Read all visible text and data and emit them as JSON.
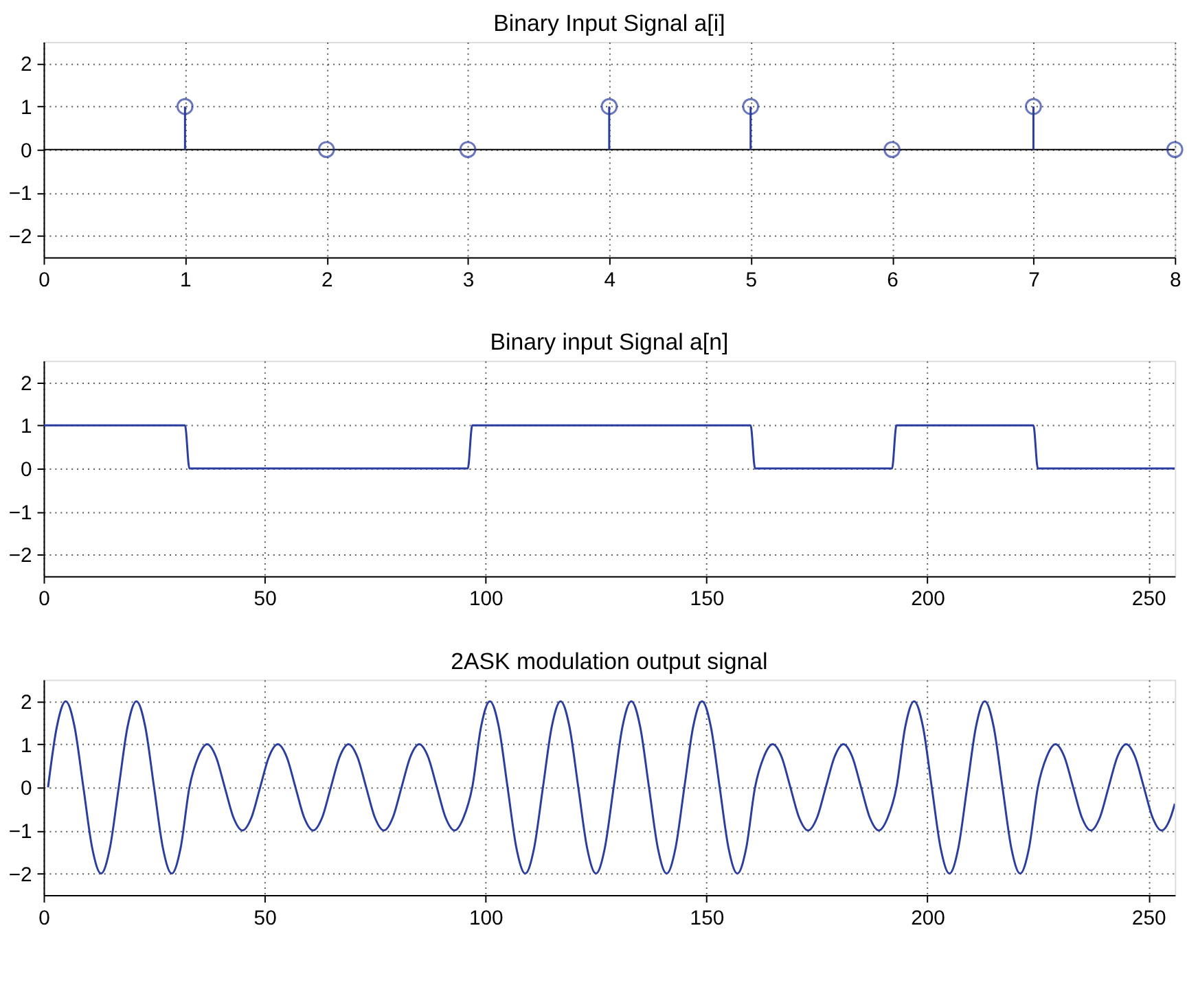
{
  "chart_data": [
    {
      "type": "lollipop",
      "title": "Binary Input Signal a[i]",
      "x": [
        1,
        2,
        3,
        4,
        5,
        6,
        7,
        8
      ],
      "series": [
        {
          "color": "#2b3ea0",
          "values": [
            1,
            0,
            0,
            1,
            1,
            0,
            1,
            0
          ]
        }
      ],
      "marker": "circle",
      "xlim": [
        0,
        8
      ],
      "xticks": [
        0,
        1,
        2,
        3,
        4,
        5,
        6,
        7,
        8
      ],
      "ylim": [
        -2.5,
        2.5
      ],
      "yticks": [
        -2,
        -1,
        0,
        1,
        2
      ],
      "grid": true
    },
    {
      "type": "line",
      "title": "Binary input Signal a[n]",
      "x": [
        0,
        32,
        33,
        96,
        97,
        160,
        161,
        192,
        193,
        224,
        225,
        256
      ],
      "series": [
        {
          "color": "#2b3ea0",
          "values": [
            1,
            1,
            0,
            0,
            1,
            1,
            0,
            0,
            1,
            1,
            0,
            0
          ]
        }
      ],
      "xlim": [
        0,
        256
      ],
      "xticks": [
        0,
        50,
        100,
        150,
        200,
        250
      ],
      "ylim": [
        -2.5,
        2.5
      ],
      "yticks": [
        -2,
        -1,
        0,
        1,
        2
      ],
      "grid": true,
      "marker": "none"
    },
    {
      "type": "line",
      "title": "2ASK modulation output signal",
      "x": [
        1,
        3,
        5,
        7,
        9,
        11,
        13,
        15,
        17,
        19,
        21,
        23,
        25,
        27,
        29,
        31,
        33,
        35,
        37,
        39,
        41,
        43,
        45,
        47,
        49,
        51,
        53,
        55,
        57,
        59,
        61,
        63,
        65,
        67,
        69,
        71,
        73,
        75,
        77,
        79,
        81,
        83,
        85,
        87,
        89,
        91,
        93,
        95,
        97,
        99,
        101,
        103,
        105,
        107,
        109,
        111,
        113,
        115,
        117,
        119,
        121,
        123,
        125,
        127,
        129,
        131,
        133,
        135,
        137,
        139,
        141,
        143,
        145,
        147,
        149,
        151,
        153,
        155,
        157,
        159,
        161,
        163,
        165,
        167,
        169,
        171,
        173,
        175,
        177,
        179,
        181,
        183,
        185,
        187,
        189,
        191,
        193,
        195,
        197,
        199,
        201,
        203,
        205,
        207,
        209,
        211,
        213,
        215,
        217,
        219,
        221,
        223,
        225,
        227,
        229,
        231,
        233,
        235,
        237,
        239,
        241,
        243,
        245,
        247,
        249,
        251,
        253,
        255,
        256
      ],
      "series": [
        {
          "color": "#2b3ea0",
          "values": [
            0,
            1.41,
            2,
            1.41,
            0,
            -1.41,
            -2,
            -1.41,
            0,
            1.41,
            2,
            1.41,
            0,
            -1.41,
            -2,
            -1.41,
            0,
            0.71,
            1,
            0.71,
            0,
            -0.71,
            -1,
            -0.71,
            0,
            0.71,
            1,
            0.71,
            0,
            -0.71,
            -1,
            -0.71,
            0,
            0.71,
            1,
            0.71,
            0,
            -0.71,
            -1,
            -0.71,
            0,
            0.71,
            1,
            0.71,
            0,
            -0.71,
            -1,
            -0.71,
            0,
            1.41,
            2,
            1.41,
            0,
            -1.41,
            -2,
            -1.41,
            0,
            1.41,
            2,
            1.41,
            0,
            -1.41,
            -2,
            -1.41,
            0,
            1.41,
            2,
            1.41,
            0,
            -1.41,
            -2,
            -1.41,
            0,
            1.41,
            2,
            1.41,
            0,
            -1.41,
            -2,
            -1.41,
            0,
            0.71,
            1,
            0.71,
            0,
            -0.71,
            -1,
            -0.71,
            0,
            0.71,
            1,
            0.71,
            0,
            -0.71,
            -1,
            -0.71,
            0,
            1.41,
            2,
            1.41,
            0,
            -1.41,
            -2,
            -1.41,
            0,
            1.41,
            2,
            1.41,
            0,
            -1.41,
            -2,
            -1.41,
            0,
            0.71,
            1,
            0.71,
            0,
            -0.71,
            -1,
            -0.71,
            0,
            0.71,
            1,
            0.71,
            0,
            -0.71,
            -1,
            -0.71,
            -0.38
          ]
        }
      ],
      "xlim": [
        0,
        256
      ],
      "xticks": [
        0,
        50,
        100,
        150,
        200,
        250
      ],
      "ylim": [
        -2.5,
        2.5
      ],
      "yticks": [
        -2,
        -1,
        0,
        1,
        2
      ],
      "grid": true,
      "marker": "none"
    }
  ]
}
